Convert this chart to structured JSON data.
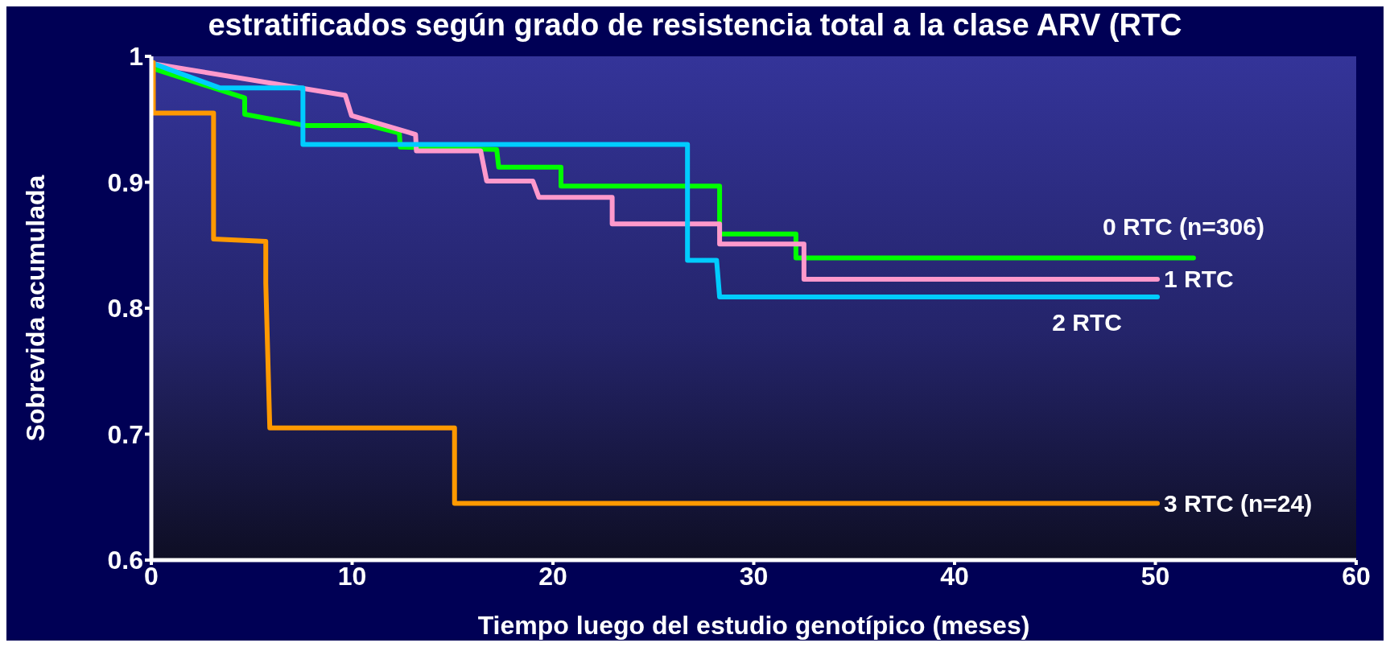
{
  "chart_data": {
    "type": "line",
    "title": "estratificados según grado de resistencia total a la clase ARV (RTC",
    "xlabel": "Tiempo luego del estudio genotípico (meses)",
    "ylabel": "Sobrevida acumulada",
    "xlim": [
      0,
      60
    ],
    "xticks": [
      0,
      10,
      20,
      30,
      40,
      50,
      60
    ],
    "ylim": [
      0.6,
      1
    ],
    "yticks": [
      0.6,
      0.7,
      0.8,
      0.9,
      1
    ],
    "grid": false,
    "legend": false,
    "marker": "none",
    "line_style": "solid",
    "series": [
      {
        "name": "0 RTC (n=306)",
        "color": "#00ff00",
        "x": [
          0.14,
          4.65,
          4.65,
          7.7,
          10.9,
          12.35,
          12.4,
          17.2,
          17.3,
          20.4,
          20.4,
          28.3,
          28.3,
          32.1,
          32.1,
          51.9
        ],
        "values": [
          0.99,
          0.967,
          0.954,
          0.945,
          0.945,
          0.939,
          0.928,
          0.926,
          0.912,
          0.912,
          0.897,
          0.897,
          0.859,
          0.859,
          0.84,
          0.84
        ]
      },
      {
        "name": "1 RTC",
        "color": "#ff99cc",
        "x": [
          0.14,
          9.66,
          9.97,
          13.16,
          13.2,
          16.4,
          16.7,
          19.0,
          19.3,
          22.95,
          22.95,
          28.3,
          28.3,
          32.5,
          32.5,
          50.1
        ],
        "values": [
          0.994,
          0.969,
          0.953,
          0.938,
          0.925,
          0.925,
          0.901,
          0.901,
          0.888,
          0.888,
          0.867,
          0.867,
          0.851,
          0.851,
          0.823,
          0.823
        ]
      },
      {
        "name": "2 RTC",
        "color": "#00ccff",
        "x": [
          0.14,
          3.4,
          7.55,
          7.55,
          26.7,
          26.7,
          28.15,
          28.3,
          50.1
        ],
        "values": [
          0.994,
          0.975,
          0.975,
          0.93,
          0.93,
          0.838,
          0.838,
          0.809,
          0.809
        ]
      },
      {
        "name": "3 RTC (n=24)",
        "color": "#ff9900",
        "x": [
          0.1,
          0.1,
          3.1,
          3.1,
          5.7,
          5.7,
          5.9,
          15.1,
          15.1,
          50.1
        ],
        "values": [
          0.995,
          0.955,
          0.955,
          0.855,
          0.853,
          0.82,
          0.705,
          0.705,
          0.645,
          0.645
        ]
      }
    ]
  }
}
